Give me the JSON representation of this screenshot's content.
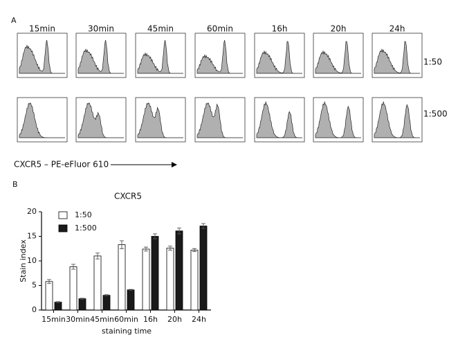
{
  "panel_a": {
    "label": "A",
    "columns": [
      "15min",
      "30min",
      "45min",
      "60min",
      "16h",
      "20h",
      "24h"
    ],
    "rows": [
      "1:50",
      "1:500"
    ],
    "x_axis_label": "CXCR5 – PE-eFluor 610"
  },
  "chart_data": {
    "type": "bar",
    "panel_label": "B",
    "title": "CXCR5",
    "x_label": "staining time",
    "y_label": "Stain index",
    "categories": [
      "15min",
      "30min",
      "45min",
      "60min",
      "16h",
      "20h",
      "24h"
    ],
    "series": [
      {
        "name": "1:50",
        "color": "#ffffff",
        "values": [
          5.8,
          8.8,
          11,
          13.3,
          12.4,
          12.6,
          12.2
        ],
        "errors": [
          0.4,
          0.5,
          0.6,
          0.8,
          0.4,
          0.4,
          0.3
        ]
      },
      {
        "name": "1:500",
        "color": "#1a1a1a",
        "values": [
          1.6,
          2.3,
          3.0,
          4.1,
          15,
          16.1,
          17.1
        ],
        "errors": [
          0.1,
          0.1,
          0.1,
          0.1,
          0.5,
          0.6,
          0.5
        ]
      }
    ],
    "ylim": [
      0,
      20
    ],
    "yticks": [
      0,
      5,
      10,
      15,
      20
    ]
  }
}
